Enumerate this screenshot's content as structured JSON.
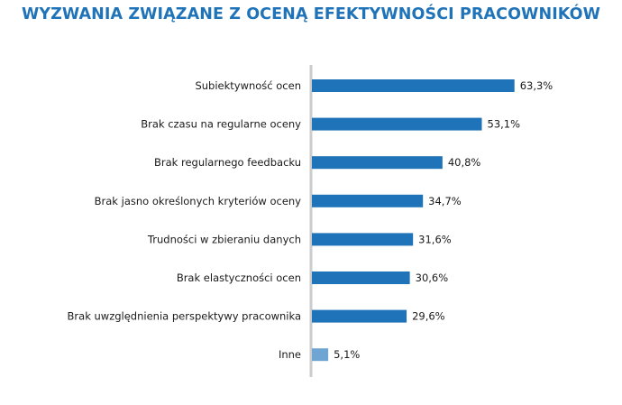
{
  "colors": {
    "title": "#1f73b8",
    "bar": "#1f73b8",
    "bar_other": "#6fa5d2",
    "axis": "#cccccc"
  },
  "chart_data": {
    "type": "bar",
    "orientation": "horizontal",
    "title": "WYZWANIA ZWIĄZANE Z OCENĄ EFEKTYWNOŚCI PRACOWNIKÓW",
    "categories": [
      "Subiektywność ocen",
      "Brak czasu na regularne oceny",
      "Brak regularnego feedbacku",
      "Brak jasno określonych kryteriów oceny",
      "Trudności w zbieraniu danych",
      "Brak elastyczności ocen",
      "Brak uwzględnienia perspektywy pracownika",
      "Inne"
    ],
    "values": [
      63.3,
      53.1,
      40.8,
      34.7,
      31.6,
      30.6,
      29.6,
      5.1
    ],
    "value_labels": [
      "63,3%",
      "53,1%",
      "40,8%",
      "34,7%",
      "31,6%",
      "30,6%",
      "29,6%",
      "5,1%"
    ],
    "unit": "%",
    "xlim": [
      0,
      100
    ],
    "grid": false,
    "legend": "none"
  }
}
